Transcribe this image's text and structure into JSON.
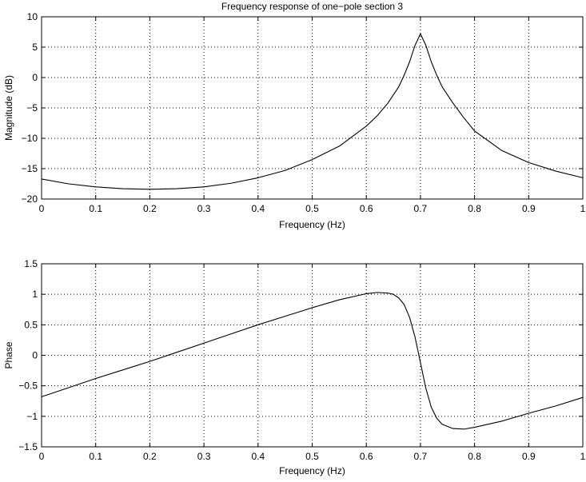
{
  "chart_data": [
    {
      "type": "line",
      "title": "Frequency response of one−pole section 3",
      "xlabel": "Frequency (Hz)",
      "ylabel": "Magnitude (dB)",
      "xlim": [
        0,
        1
      ],
      "ylim": [
        -20,
        10
      ],
      "xticks": [
        0,
        0.1,
        0.2,
        0.3,
        0.4,
        0.5,
        0.6,
        0.7,
        0.8,
        0.9,
        1
      ],
      "xtick_labels": [
        "0",
        "0.1",
        "0.2",
        "0.3",
        "0.4",
        "0.5",
        "0.6",
        "0.7",
        "0.8",
        "0.9",
        "1"
      ],
      "yticks": [
        -20,
        -15,
        -10,
        -5,
        0,
        5,
        10
      ],
      "ytick_labels": [
        "−20",
        "−15",
        "−10",
        "−5",
        "0",
        "5",
        "10"
      ],
      "grid": true,
      "series": [
        {
          "color": "#000000",
          "x": [
            0,
            0.05,
            0.1,
            0.15,
            0.2,
            0.25,
            0.3,
            0.35,
            0.4,
            0.45,
            0.5,
            0.55,
            0.6,
            0.62,
            0.64,
            0.66,
            0.67,
            0.68,
            0.69,
            0.7,
            0.71,
            0.72,
            0.73,
            0.74,
            0.76,
            0.78,
            0.8,
            0.85,
            0.9,
            0.95,
            1
          ],
          "y": [
            -16.7,
            -17.5,
            -18.0,
            -18.3,
            -18.4,
            -18.3,
            -18.0,
            -17.4,
            -16.5,
            -15.3,
            -13.5,
            -11.3,
            -8.0,
            -6.3,
            -4.2,
            -1.5,
            0.4,
            2.6,
            5.3,
            7.2,
            5.3,
            2.6,
            0.4,
            -1.5,
            -4.2,
            -6.6,
            -8.8,
            -12.0,
            -14.0,
            -15.4,
            -16.5
          ]
        }
      ]
    },
    {
      "type": "line",
      "title": "",
      "xlabel": "Frequency (Hz)",
      "ylabel": "Phase",
      "xlim": [
        0,
        1
      ],
      "ylim": [
        -1.5,
        1.5
      ],
      "xticks": [
        0,
        0.1,
        0.2,
        0.3,
        0.4,
        0.5,
        0.6,
        0.7,
        0.8,
        0.9,
        1
      ],
      "xtick_labels": [
        "0",
        "0.1",
        "0.2",
        "0.3",
        "0.4",
        "0.5",
        "0.6",
        "0.7",
        "0.8",
        "0.9",
        "1"
      ],
      "yticks": [
        -1.5,
        -1,
        -0.5,
        0,
        0.5,
        1,
        1.5
      ],
      "ytick_labels": [
        "−1.5",
        "−1",
        "−0.5",
        "0",
        "0.5",
        "1",
        "1.5"
      ],
      "grid": true,
      "series": [
        {
          "color": "#000000",
          "x": [
            0,
            0.05,
            0.1,
            0.15,
            0.2,
            0.25,
            0.3,
            0.35,
            0.4,
            0.45,
            0.5,
            0.55,
            0.6,
            0.62,
            0.64,
            0.65,
            0.66,
            0.67,
            0.68,
            0.69,
            0.7,
            0.71,
            0.72,
            0.73,
            0.74,
            0.76,
            0.78,
            0.8,
            0.85,
            0.9,
            0.95,
            1
          ],
          "y": [
            -0.68,
            -0.53,
            -0.38,
            -0.24,
            -0.1,
            0.05,
            0.2,
            0.35,
            0.5,
            0.64,
            0.78,
            0.91,
            1.01,
            1.03,
            1.02,
            1.0,
            0.94,
            0.83,
            0.62,
            0.3,
            -0.12,
            -0.54,
            -0.85,
            -1.03,
            -1.13,
            -1.2,
            -1.21,
            -1.18,
            -1.08,
            -0.95,
            -0.83,
            -0.69
          ]
        }
      ]
    }
  ]
}
